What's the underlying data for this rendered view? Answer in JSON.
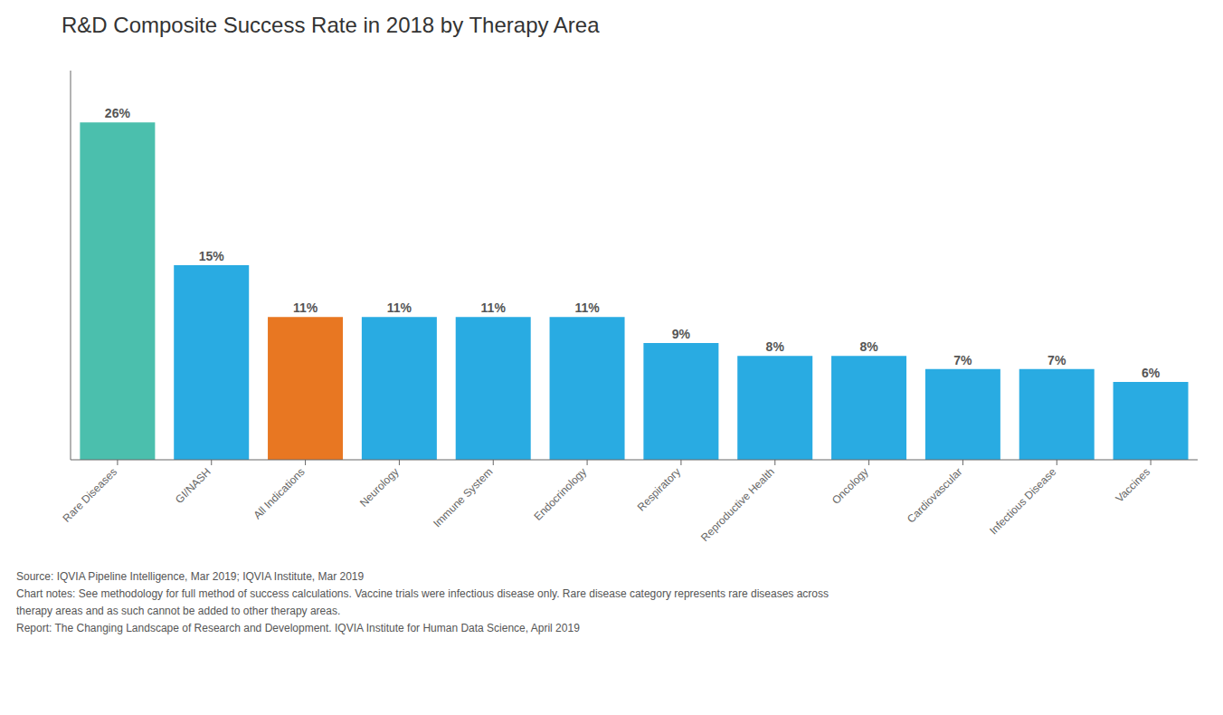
{
  "chart_data": {
    "type": "bar",
    "title": "R&D Composite Success Rate in 2018 by Therapy Area",
    "categories": [
      "Rare Diseases",
      "GI/NASH",
      "All Indications",
      "Neurology",
      "Immune System",
      "Endocrinology",
      "Respiratory",
      "Reproductive Health",
      "Oncology",
      "Cardiovascular",
      "Infectious Disease",
      "Vaccines"
    ],
    "values": [
      26,
      15,
      11,
      11,
      11,
      11,
      9,
      8,
      8,
      7,
      7,
      6
    ],
    "value_labels": [
      "26%",
      "15%",
      "11%",
      "11%",
      "11%",
      "11%",
      "9%",
      "8%",
      "8%",
      "7%",
      "7%",
      "6%"
    ],
    "data_labels": true,
    "colors": [
      "#4bbfad",
      "#29abe2",
      "#e87722",
      "#29abe2",
      "#29abe2",
      "#29abe2",
      "#29abe2",
      "#29abe2",
      "#29abe2",
      "#29abe2",
      "#29abe2",
      "#29abe2"
    ],
    "ylim": [
      0,
      30
    ],
    "tick_labels": "x",
    "grid": false,
    "annotations": [
      "Source: IQVIA Pipeline Intelligence, Mar 2019; IQVIA Institute, Mar 2019",
      "Chart notes: See methodology for full method of success calculations. Vaccine trials were infectious disease only. Rare disease category represents rare diseases across",
      "therapy areas and as such cannot be added to other therapy areas.",
      "Report: The Changing Landscape of Research and Development. IQVIA Institute for Human Data Science, April 2019"
    ]
  }
}
